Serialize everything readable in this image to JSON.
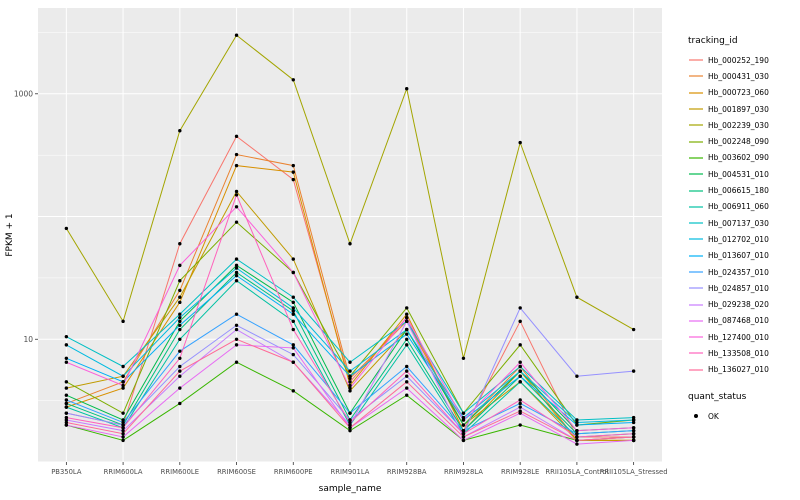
{
  "axes": {
    "x_label": "sample_name",
    "y_label": "FPKM + 1",
    "y_ticks": [
      {
        "label": "1000",
        "value": 1000
      },
      {
        "label": "10",
        "value": 10
      }
    ]
  },
  "legend": {
    "tracking_title": "tracking_id",
    "quant_title": "quant_status",
    "quant_items": [
      {
        "label": "OK"
      }
    ]
  },
  "chart_data": {
    "type": "line",
    "title": "",
    "xlabel": "sample_name",
    "ylabel": "FPKM + 1",
    "y_scale": "log10",
    "ylim": [
      1,
      5000
    ],
    "grid": true,
    "legend_position": "right",
    "colors": {
      "panel_bg": "#EBEBEB",
      "grid": "#FFFFFF",
      "point": "#000000",
      "axis_text": "#4D4D4D"
    },
    "x_categories": [
      "PB350LA",
      "RRIM600LA",
      "RRIM600LE",
      "RRIM600SE",
      "RRIM600PE",
      "RRIM901LA",
      "RRIM928BA",
      "RRIM928LA",
      "RRIM928LE",
      "RRII105LA_Control",
      "RRII105LA_Stressed"
    ],
    "series": [
      {
        "name": "Hb_000252_190",
        "color": "#F8766D",
        "values": [
          2.5,
          2,
          60,
          450,
          200,
          4.5,
          15,
          1.8,
          14,
          1.6,
          1.6
        ]
      },
      {
        "name": "Hb_000431_030",
        "color": "#EA8331",
        "values": [
          3,
          4.5,
          25,
          320,
          260,
          4.8,
          14,
          2,
          6,
          1.5,
          1.5
        ]
      },
      {
        "name": "Hb_000723_060",
        "color": "#D89000",
        "values": [
          2.8,
          4,
          20,
          260,
          230,
          4.2,
          16,
          1.8,
          5.5,
          1.5,
          1.5
        ]
      },
      {
        "name": "Hb_001897_030",
        "color": "#C09B00",
        "values": [
          4,
          5,
          22,
          160,
          45,
          3.8,
          12,
          2,
          4.5,
          1.5,
          1.5
        ]
      },
      {
        "name": "Hb_002239_030",
        "color": "#A3A500",
        "values": [
          80,
          14,
          500,
          3000,
          1300,
          60,
          1100,
          7,
          400,
          22,
          12
        ]
      },
      {
        "name": "Hb_002248_090",
        "color": "#7CAE00",
        "values": [
          4.5,
          2.5,
          30,
          90,
          35,
          5,
          18,
          2.5,
          9,
          2,
          2.2
        ]
      },
      {
        "name": "Hb_003602_090",
        "color": "#39B600",
        "values": [
          2,
          1.5,
          3,
          6.5,
          3.8,
          1.8,
          3.5,
          1.5,
          2,
          1.5,
          1.6
        ]
      },
      {
        "name": "Hb_004531_010",
        "color": "#00BB4E",
        "values": [
          3.5,
          2.2,
          14,
          40,
          20,
          2.5,
          12,
          2,
          5.5,
          1.8,
          1.9
        ]
      },
      {
        "name": "Hb_006615_180",
        "color": "#00BF7D",
        "values": [
          3,
          2,
          12,
          35,
          17,
          2.2,
          10,
          1.8,
          5,
          1.7,
          1.8
        ]
      },
      {
        "name": "Hb_006911_060",
        "color": "#00C1A3",
        "values": [
          2.8,
          1.9,
          10,
          30,
          14,
          2,
          9,
          1.7,
          4.5,
          1.6,
          1.7
        ]
      },
      {
        "name": "Hb_007137_030",
        "color": "#00BFC4",
        "values": [
          10.5,
          6,
          16,
          45,
          22,
          6.5,
          14,
          2.5,
          6,
          2.2,
          2.3
        ]
      },
      {
        "name": "Hb_012702_010",
        "color": "#00BAE0",
        "values": [
          9,
          5,
          15,
          38,
          18,
          5.5,
          12,
          2.3,
          5.5,
          2.1,
          2.2
        ]
      },
      {
        "name": "Hb_013607_010",
        "color": "#00B0F6",
        "values": [
          7,
          4.5,
          13,
          33,
          16,
          5,
          11,
          2.2,
          5,
          2,
          2.1
        ]
      },
      {
        "name": "Hb_024357_010",
        "color": "#35A2FF",
        "values": [
          3.2,
          2.1,
          8,
          16,
          9,
          2.5,
          6,
          1.8,
          3,
          1.7,
          1.8
        ]
      },
      {
        "name": "Hb_024857_010",
        "color": "#9590FF",
        "values": [
          2.5,
          2,
          6,
          13,
          7.5,
          2.2,
          5,
          1.7,
          18,
          5,
          5.5
        ]
      },
      {
        "name": "Hb_029238_020",
        "color": "#C77CFF",
        "values": [
          2.2,
          1.8,
          5,
          12,
          6.5,
          2,
          14,
          1.6,
          2.8,
          1.5,
          1.6
        ]
      },
      {
        "name": "Hb_087468_010",
        "color": "#E76BF3",
        "values": [
          2,
          1.6,
          4,
          9,
          8.5,
          1.9,
          4,
          1.5,
          2.5,
          1.4,
          1.5
        ]
      },
      {
        "name": "Hb_127400_010",
        "color": "#FA62DB",
        "values": [
          6.5,
          4.2,
          40,
          120,
          35,
          4,
          15,
          2.2,
          6.5,
          1.8,
          1.9
        ]
      },
      {
        "name": "Hb_133508_010",
        "color": "#FF62BC",
        "values": [
          2.3,
          1.9,
          7,
          150,
          12,
          2.1,
          5.5,
          1.7,
          3.2,
          1.6,
          1.7
        ]
      },
      {
        "name": "Hb_136027_010",
        "color": "#FF6A98",
        "values": [
          2.1,
          1.7,
          5.5,
          10,
          6.5,
          1.9,
          4.5,
          1.6,
          2.6,
          1.5,
          1.6
        ]
      }
    ],
    "quant_status": "OK"
  }
}
